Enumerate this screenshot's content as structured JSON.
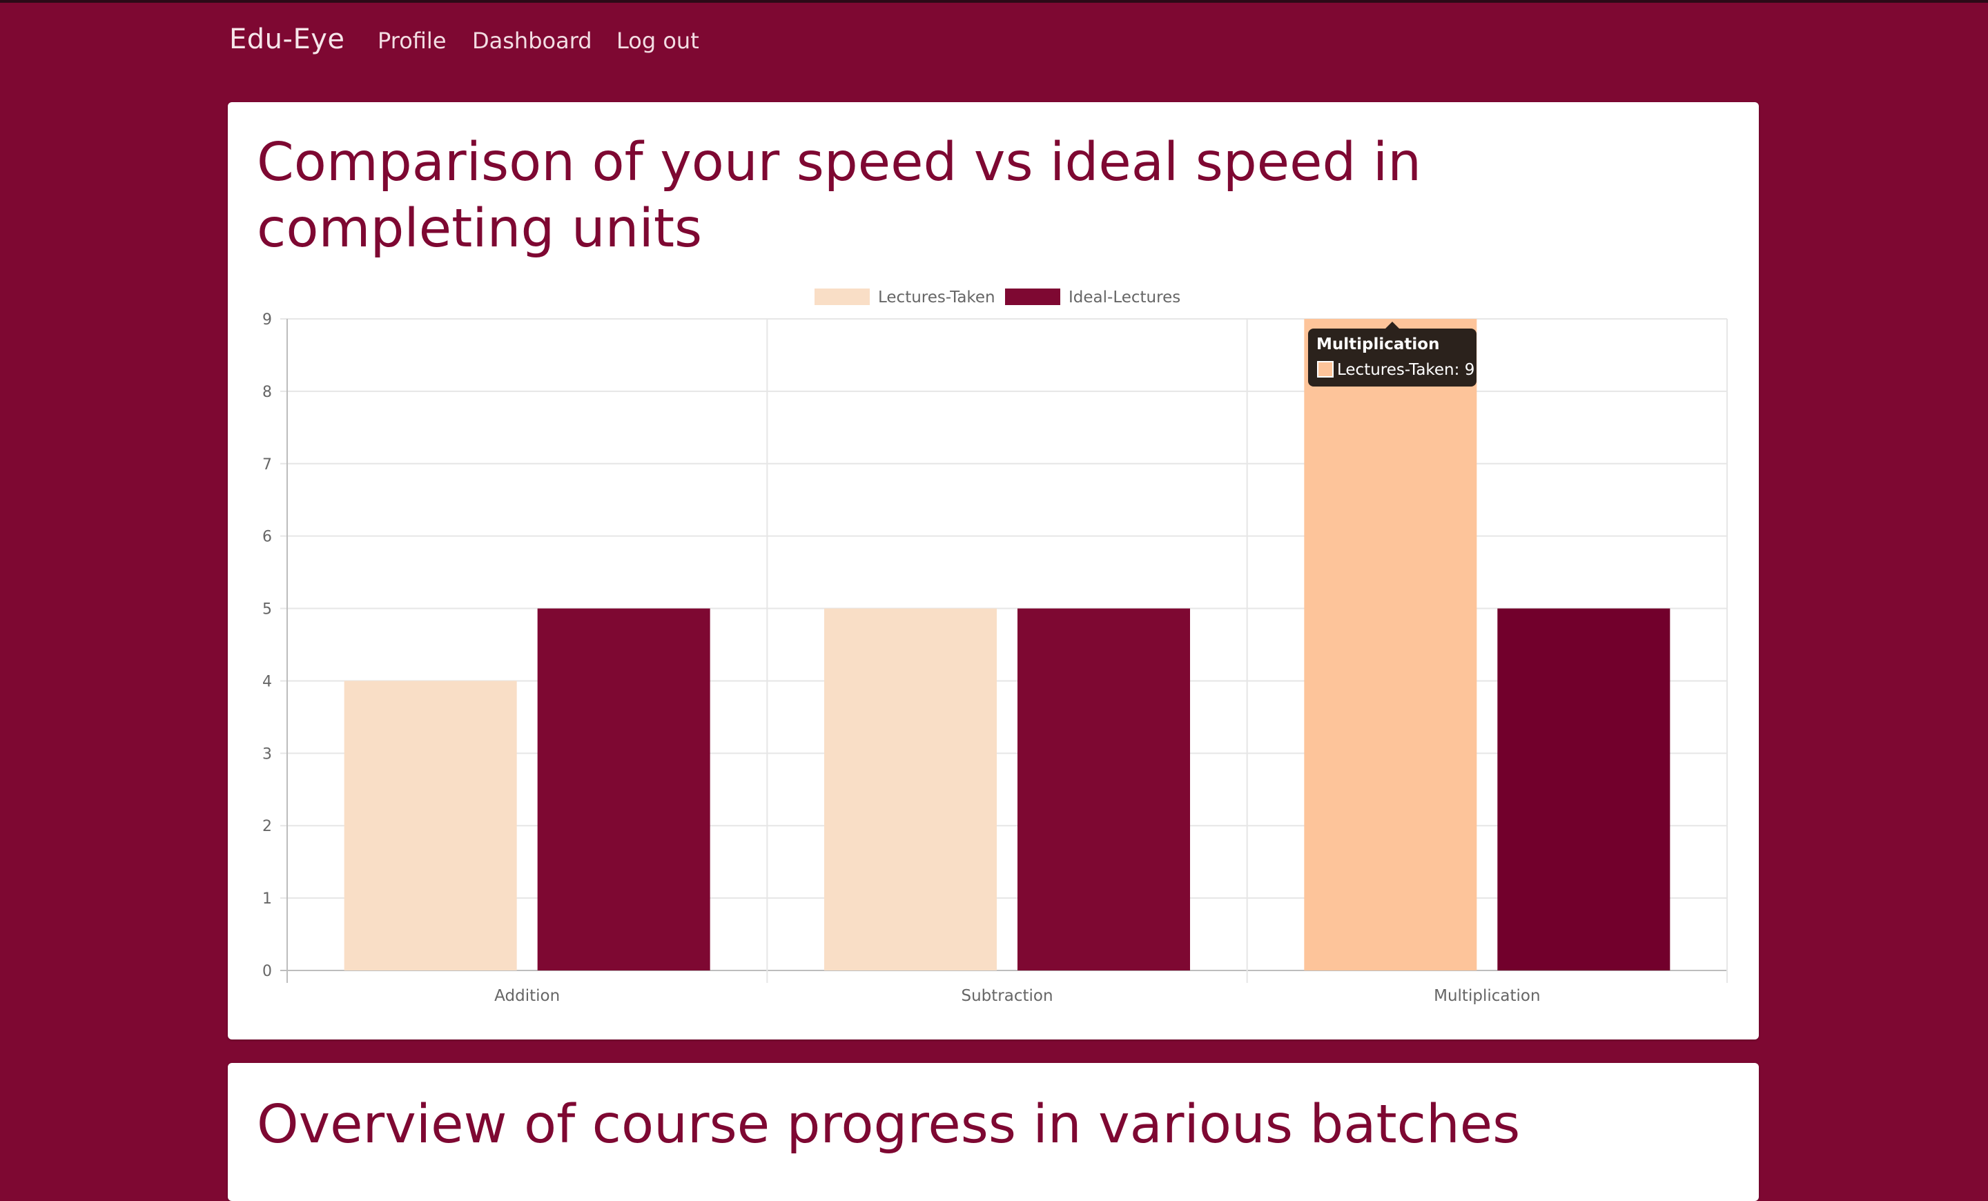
{
  "nav": {
    "brand": "Edu-Eye",
    "links": [
      "Profile",
      "Dashboard",
      "Log out"
    ]
  },
  "cards": {
    "speed": {
      "title_line1": "Comparison of your speed vs ideal speed in",
      "title_line2": "completing units"
    },
    "overview": {
      "title": "Overview of course progress in various batches"
    }
  },
  "chart_data": {
    "type": "bar",
    "categories": [
      "Addition",
      "Subtraction",
      "Multiplication"
    ],
    "series": [
      {
        "name": "Lectures-Taken",
        "values": [
          4,
          5,
          9
        ],
        "color": "#f9dec6"
      },
      {
        "name": "Ideal-Lectures",
        "values": [
          5,
          5,
          5
        ],
        "color": "#7e0832"
      }
    ],
    "ylim": [
      0,
      9
    ],
    "yticks": [
      0,
      1,
      2,
      3,
      4,
      5,
      6,
      7,
      8,
      9
    ],
    "grid": true,
    "legend": "top-center",
    "hover": {
      "category_index": 2,
      "series_index": 0,
      "highlight_color": "#fdc49a",
      "ideal_highlight_color": "#72002c"
    },
    "tooltip": {
      "title": "Multiplication",
      "label": "Lectures-Taken: 9"
    }
  }
}
